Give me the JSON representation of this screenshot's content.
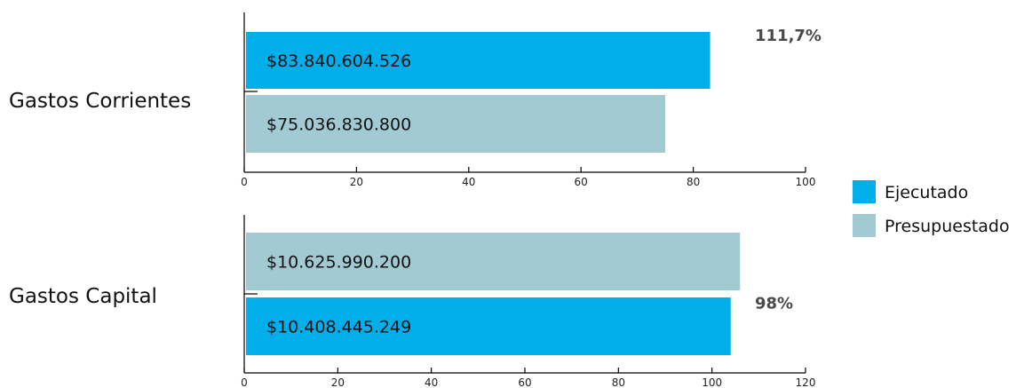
{
  "chart_data": [
    {
      "type": "bar",
      "orientation": "horizontal",
      "category": "Gastos Corrientes",
      "xlim": [
        0,
        100
      ],
      "xticks": [
        "0",
        "20",
        "40",
        "60",
        "80",
        "100"
      ],
      "bars": [
        {
          "series": "Ejecutado",
          "value": 83,
          "label": "$83.840.604.526",
          "percent": "111,7%"
        },
        {
          "series": "Presupuestado",
          "value": 75,
          "label": "$75.036.830.800"
        }
      ]
    },
    {
      "type": "bar",
      "orientation": "horizontal",
      "category": "Gastos Capital",
      "xlim": [
        0,
        120
      ],
      "xticks": [
        "0",
        "20",
        "40",
        "60",
        "80",
        "100",
        "120"
      ],
      "bars": [
        {
          "series": "Presupuestado",
          "value": 106,
          "label": "$10.625.990.200"
        },
        {
          "series": "Ejecutado",
          "value": 104,
          "label": "$10.408.445.249",
          "percent": "98%"
        }
      ]
    }
  ],
  "legend": {
    "placement": "right",
    "items": [
      {
        "label": "Ejecutado",
        "color": "#00AEEA"
      },
      {
        "label": "Presupuestado",
        "color": "#A2CAD3"
      }
    ]
  },
  "colors": {
    "Ejecutado": "#00AEEA",
    "Presupuestado": "#A2CAD3"
  }
}
